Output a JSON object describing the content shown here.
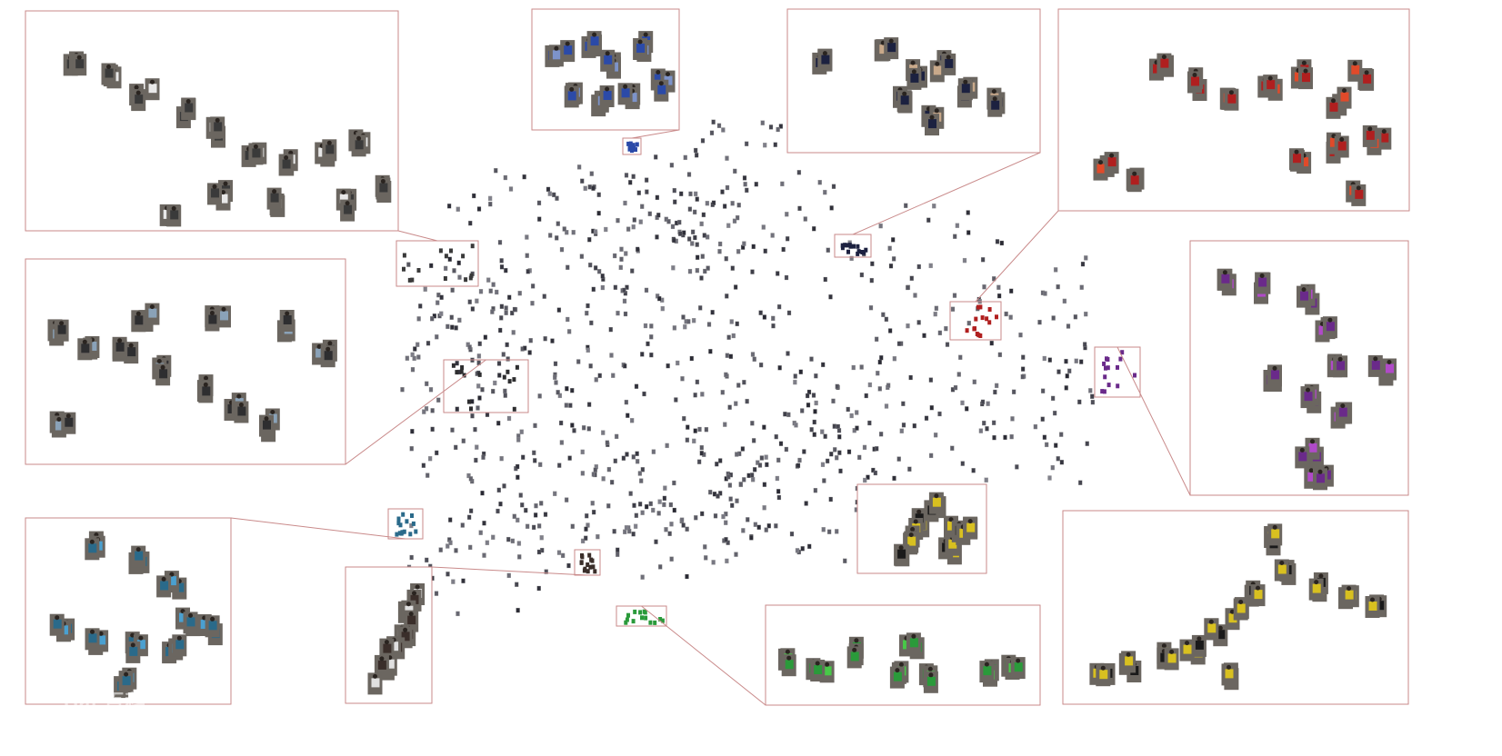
{
  "figure": {
    "kind": "tsne-embedding-of-person-crops",
    "background_color": "#ffffff",
    "frame_color": "#c98a8a",
    "callout_count": 13,
    "callout_groups": [
      {
        "id": "gray-white-group",
        "dominant_color": "#3a3a3a",
        "accent": "#e8e8e8"
      },
      {
        "id": "blue-group",
        "dominant_color": "#2b4aa8",
        "accent": "#7d93c9"
      },
      {
        "id": "navy-shorts-group",
        "dominant_color": "#1c2140",
        "accent": "#c9a98a"
      },
      {
        "id": "red-group",
        "dominant_color": "#b01f1f",
        "accent": "#e04a2a"
      },
      {
        "id": "mixed-dark-group",
        "dominant_color": "#2e2e30",
        "accent": "#8aa2b8"
      },
      {
        "id": "purple-group",
        "dominant_color": "#6a2a8a",
        "accent": "#b04ac8"
      },
      {
        "id": "teal-blue-group",
        "dominant_color": "#2a6a8a",
        "accent": "#4aa0d0"
      },
      {
        "id": "single-person-strip",
        "dominant_color": "#3a2e2a",
        "accent": "#e0e0e0"
      },
      {
        "id": "green-group",
        "dominant_color": "#2a9a3a",
        "accent": "#48c848"
      },
      {
        "id": "yellow-group",
        "dominant_color": "#d8c020",
        "accent": "#1a1a1a"
      }
    ]
  },
  "watermark": {
    "text": "Bai 百科",
    "visible_as_logo": true
  }
}
